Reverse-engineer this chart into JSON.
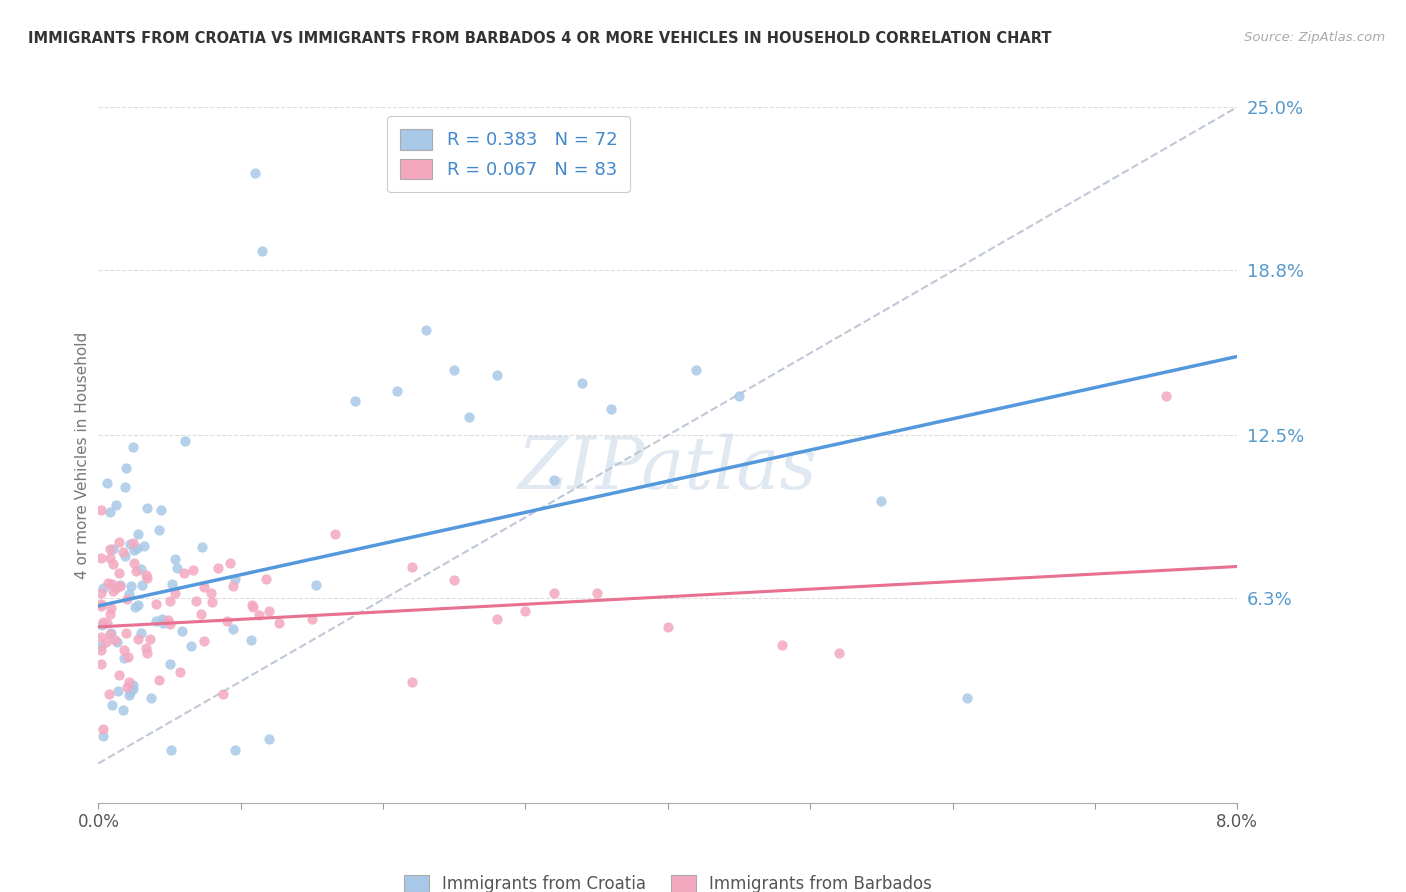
{
  "title": "IMMIGRANTS FROM CROATIA VS IMMIGRANTS FROM BARBADOS 4 OR MORE VEHICLES IN HOUSEHOLD CORRELATION CHART",
  "source": "Source: ZipAtlas.com",
  "ylabel": "4 or more Vehicles in Household",
  "legend1_label": "Immigrants from Croatia",
  "legend2_label": "Immigrants from Barbados",
  "r1": 0.383,
  "n1": 72,
  "r2": 0.067,
  "n2": 83,
  "color1": "#A8C8E8",
  "color2": "#F4A8C0",
  "trendline1_color": "#5599DD",
  "trendline2_color": "#E87090",
  "dashed_line_color": "#C0C8D8",
  "xmin": 0.0,
  "xmax": 8.0,
  "ymin": -1.5,
  "ymax": 25.0,
  "ytick_right": [
    6.3,
    12.5,
    18.8,
    25.0
  ],
  "ytick_right_labels": [
    "6.3%",
    "12.5%",
    "18.8%",
    "25.0%"
  ],
  "background_color": "#FFFFFF",
  "trendline1_x0": 0.0,
  "trendline1_y0": 6.0,
  "trendline1_x1": 8.0,
  "trendline1_y1": 15.5,
  "trendline2_x0": 0.0,
  "trendline2_y0": 5.2,
  "trendline2_x1": 8.0,
  "trendline2_y1": 7.5,
  "diag_x0": 0.0,
  "diag_y0": 0.0,
  "diag_x1": 8.0,
  "diag_y1": 25.0
}
